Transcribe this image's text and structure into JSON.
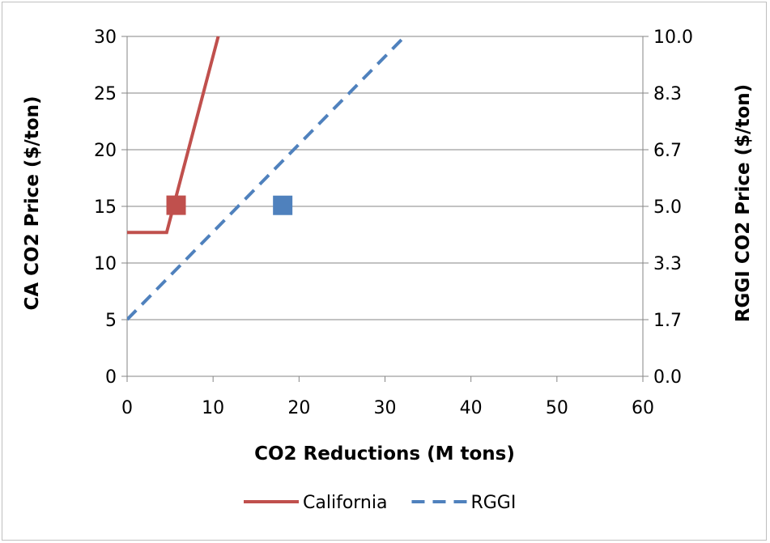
{
  "chart_data": {
    "type": "line",
    "title": "",
    "xlabel": "CO2 Reductions (M tons)",
    "ylabel": "CA CO2 Price ($/ton)",
    "y2label": "RGGI CO2 Price ($/ton)",
    "xlim": [
      0,
      60
    ],
    "ylim": [
      0,
      30
    ],
    "y2lim": [
      0,
      10
    ],
    "x_ticks": [
      "0",
      "10",
      "20",
      "30",
      "40",
      "50",
      "60"
    ],
    "y_ticks": [
      "0",
      "5",
      "10",
      "15",
      "20",
      "25",
      "30"
    ],
    "y2_ticks": [
      "0.0",
      "1.7",
      "3.3",
      "5.0",
      "6.7",
      "8.3",
      "10.0"
    ],
    "grid": "horizontal",
    "legend_position": "bottom",
    "series": [
      {
        "name": "California",
        "axis": "left",
        "style": "solid",
        "color": "#c0504d",
        "x": [
          0,
          4.6,
          10.6
        ],
        "y": [
          12.7,
          12.7,
          30
        ]
      },
      {
        "name": "RGGI",
        "axis": "right",
        "style": "dashed",
        "color": "#4f81bd",
        "x": [
          0,
          32.3
        ],
        "y": [
          1.67,
          10
        ]
      }
    ],
    "markers": [
      {
        "series": "California",
        "axis": "left",
        "x": 5.7,
        "y": 15.1,
        "color": "#c0504d",
        "shape": "square"
      },
      {
        "series": "RGGI",
        "axis": "right",
        "x": 18.1,
        "y": 5.03,
        "color": "#4f81bd",
        "shape": "square"
      }
    ]
  }
}
